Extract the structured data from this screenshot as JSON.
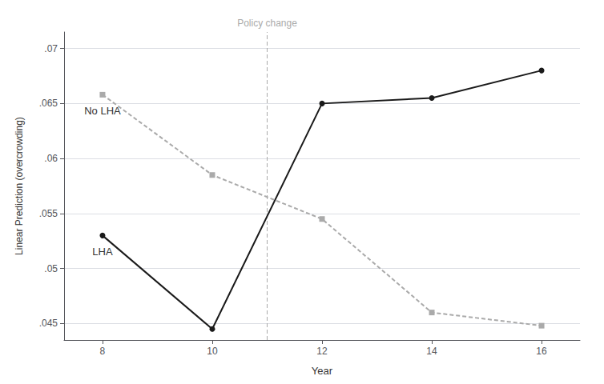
{
  "chart_data": {
    "type": "line",
    "x_label": "Year",
    "y_label": "Linear Prediction (overcrowding)",
    "x": [
      8,
      10,
      12,
      14,
      16
    ],
    "series": [
      {
        "name": "LHA",
        "color": "#1a1a1a",
        "marker": "circle",
        "line_style": "solid",
        "values": [
          0.053,
          0.0445,
          0.065,
          0.0655,
          0.068
        ]
      },
      {
        "name": "No LHA",
        "color": "#aaaaaa",
        "marker": "square",
        "line_style": "dashed",
        "values": [
          0.0658,
          0.0585,
          0.0545,
          0.046,
          0.0448
        ]
      }
    ],
    "annotations": [
      {
        "text": "Policy change",
        "x": 11,
        "color": "#aaaaaa",
        "line_style": "dashed"
      }
    ],
    "xlim": [
      7.3,
      16.7
    ],
    "xticks": [
      8,
      10,
      12,
      14,
      16
    ],
    "ylim": [
      0.0435,
      0.0715
    ],
    "yticks": [
      {
        "value": 0.045,
        "label": ".045"
      },
      {
        "value": 0.05,
        "label": ".05"
      },
      {
        "value": 0.055,
        "label": ".055"
      },
      {
        "value": 0.06,
        "label": ".06"
      },
      {
        "value": 0.065,
        "label": ".065"
      },
      {
        "value": 0.07,
        "label": ".07"
      }
    ],
    "grid": "y"
  }
}
